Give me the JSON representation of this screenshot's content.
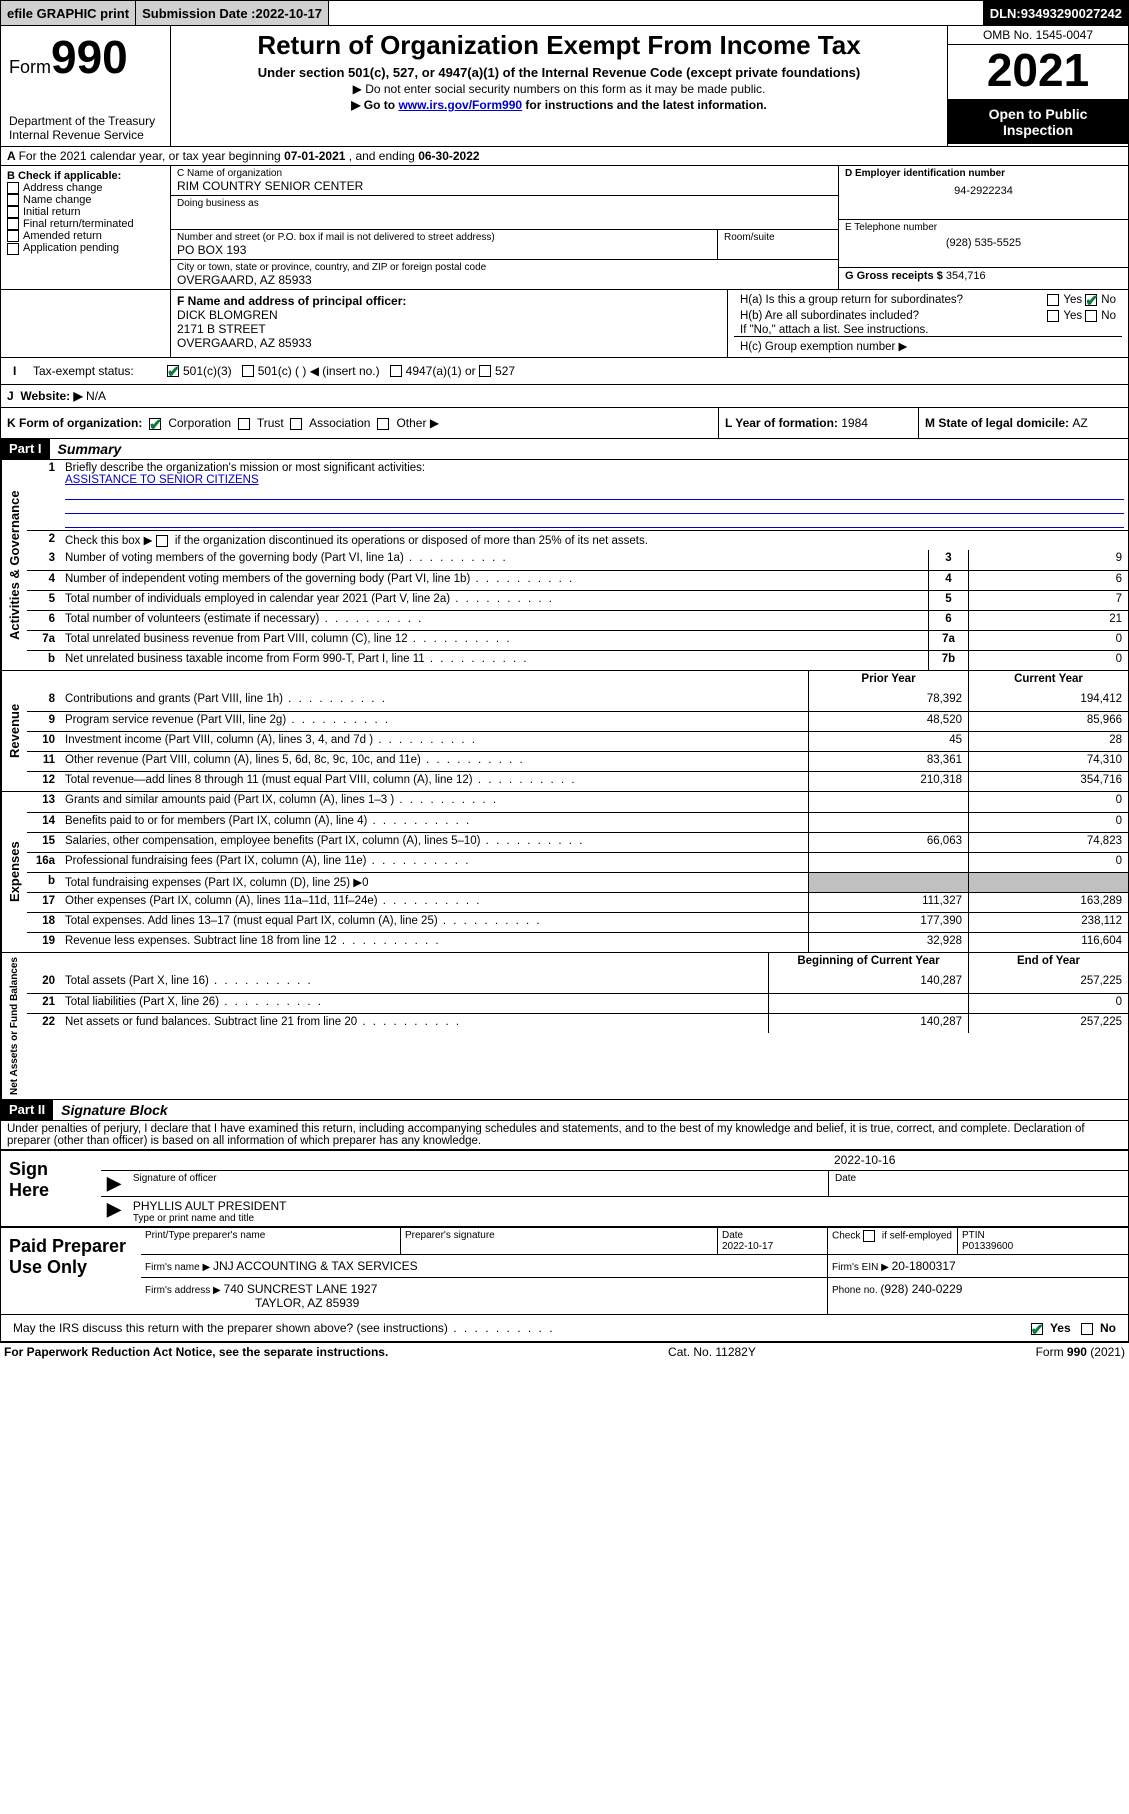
{
  "topbar": {
    "efile": "efile GRAPHIC print",
    "submission_label": "Submission Date : ",
    "submission_date": "2022-10-17",
    "dln_label": "DLN: ",
    "dln": "93493290027242"
  },
  "header": {
    "form_prefix": "Form",
    "form_num": "990",
    "dept": "Department of the Treasury",
    "irs": "Internal Revenue Service",
    "title": "Return of Organization Exempt From Income Tax",
    "subtitle": "Under section 501(c), 527, or 4947(a)(1) of the Internal Revenue Code (except private foundations)",
    "note1": "▶ Do not enter social security numbers on this form as it may be made public.",
    "note2_pre": "▶ Go to ",
    "note2_link": "www.irs.gov/Form990",
    "note2_post": " for instructions and the latest information.",
    "omb": "OMB No. 1545-0047",
    "year": "2021",
    "open": "Open to Public Inspection"
  },
  "period": {
    "text_a": "For the 2021 calendar year, or tax year beginning ",
    "begin": "07-01-2021",
    "text_b": " , and ending ",
    "end": "06-30-2022"
  },
  "boxB": {
    "label": "B Check if applicable:",
    "items": [
      "Address change",
      "Name change",
      "Initial return",
      "Final return/terminated",
      "Amended return",
      "Application pending"
    ]
  },
  "boxC": {
    "name_label": "C Name of organization",
    "name": "RIM COUNTRY SENIOR CENTER",
    "dba_label": "Doing business as",
    "dba": "",
    "addr_label": "Number and street (or P.O. box if mail is not delivered to street address)",
    "room_label": "Room/suite",
    "addr": "PO BOX 193",
    "city_label": "City or town, state or province, country, and ZIP or foreign postal code",
    "city": "OVERGAARD, AZ  85933"
  },
  "boxD": {
    "label": "D Employer identification number",
    "val": "94-2922234"
  },
  "boxE": {
    "label": "E Telephone number",
    "val": "(928) 535-5525"
  },
  "boxG": {
    "label": "G Gross receipts $ ",
    "val": "354,716"
  },
  "boxF": {
    "label": "F Name and address of principal officer:",
    "name": "DICK BLOMGREN",
    "addr1": "2171 B STREET",
    "addr2": "OVERGAARD, AZ  85933"
  },
  "boxH": {
    "a": "H(a)  Is this a group return for subordinates?",
    "b": "H(b)  Are all subordinates included?",
    "b_note": "If \"No,\" attach a list. See instructions.",
    "c": "H(c)  Group exemption number ▶",
    "yes": "Yes",
    "no": "No"
  },
  "boxI": {
    "label": "Tax-exempt status:",
    "s1": "501(c)(3)",
    "s2": "501(c) (  ) ◀ (insert no.)",
    "s3": "4947(a)(1) or",
    "s4": "527"
  },
  "boxJ": {
    "label": "Website: ▶",
    "val": "N/A"
  },
  "boxK": {
    "label": "K Form of organization:",
    "o1": "Corporation",
    "o2": "Trust",
    "o3": "Association",
    "o4": "Other ▶"
  },
  "boxL": {
    "label": "L Year of formation: ",
    "val": "1984"
  },
  "boxM": {
    "label": "M State of legal domicile: ",
    "val": "AZ"
  },
  "part1": {
    "hdr": "Part I",
    "title": "Summary",
    "l1": "Briefly describe the organization's mission or most significant activities:",
    "mission": "ASSISTANCE TO SENIOR CITIZENS",
    "l2": "Check this box ▶",
    "l2b": " if the organization discontinued its operations or disposed of more than 25% of its net assets.",
    "tabs": {
      "gov": "Activities & Governance",
      "rev": "Revenue",
      "exp": "Expenses",
      "net": "Net Assets or Fund Balances"
    },
    "cols": {
      "prior": "Prior Year",
      "current": "Current Year",
      "begin": "Beginning of Current Year",
      "end": "End of Year"
    },
    "rows_gov": [
      {
        "n": "3",
        "t": "Number of voting members of the governing body (Part VI, line 1a)",
        "box": "3",
        "v": "9"
      },
      {
        "n": "4",
        "t": "Number of independent voting members of the governing body (Part VI, line 1b)",
        "box": "4",
        "v": "6"
      },
      {
        "n": "5",
        "t": "Total number of individuals employed in calendar year 2021 (Part V, line 2a)",
        "box": "5",
        "v": "7"
      },
      {
        "n": "6",
        "t": "Total number of volunteers (estimate if necessary)",
        "box": "6",
        "v": "21"
      },
      {
        "n": "7a",
        "t": "Total unrelated business revenue from Part VIII, column (C), line 12",
        "box": "7a",
        "v": "0"
      },
      {
        "n": "b",
        "t": "Net unrelated business taxable income from Form 990-T, Part I, line 11",
        "box": "7b",
        "v": "0"
      }
    ],
    "rows_rev": [
      {
        "n": "8",
        "t": "Contributions and grants (Part VIII, line 1h)",
        "p": "78,392",
        "c": "194,412"
      },
      {
        "n": "9",
        "t": "Program service revenue (Part VIII, line 2g)",
        "p": "48,520",
        "c": "85,966"
      },
      {
        "n": "10",
        "t": "Investment income (Part VIII, column (A), lines 3, 4, and 7d )",
        "p": "45",
        "c": "28"
      },
      {
        "n": "11",
        "t": "Other revenue (Part VIII, column (A), lines 5, 6d, 8c, 9c, 10c, and 11e)",
        "p": "83,361",
        "c": "74,310"
      },
      {
        "n": "12",
        "t": "Total revenue—add lines 8 through 11 (must equal Part VIII, column (A), line 12)",
        "p": "210,318",
        "c": "354,716"
      }
    ],
    "rows_exp": [
      {
        "n": "13",
        "t": "Grants and similar amounts paid (Part IX, column (A), lines 1–3 )",
        "p": "",
        "c": "0"
      },
      {
        "n": "14",
        "t": "Benefits paid to or for members (Part IX, column (A), line 4)",
        "p": "",
        "c": "0"
      },
      {
        "n": "15",
        "t": "Salaries, other compensation, employee benefits (Part IX, column (A), lines 5–10)",
        "p": "66,063",
        "c": "74,823"
      },
      {
        "n": "16a",
        "t": "Professional fundraising fees (Part IX, column (A), line 11e)",
        "p": "",
        "c": "0"
      },
      {
        "n": "b",
        "t": "Total fundraising expenses (Part IX, column (D), line 25) ▶0",
        "shade": true
      },
      {
        "n": "17",
        "t": "Other expenses (Part IX, column (A), lines 11a–11d, 11f–24e)",
        "p": "111,327",
        "c": "163,289"
      },
      {
        "n": "18",
        "t": "Total expenses. Add lines 13–17 (must equal Part IX, column (A), line 25)",
        "p": "177,390",
        "c": "238,112"
      },
      {
        "n": "19",
        "t": "Revenue less expenses. Subtract line 18 from line 12",
        "p": "32,928",
        "c": "116,604"
      }
    ],
    "rows_net": [
      {
        "n": "20",
        "t": "Total assets (Part X, line 16)",
        "p": "140,287",
        "c": "257,225"
      },
      {
        "n": "21",
        "t": "Total liabilities (Part X, line 26)",
        "p": "",
        "c": "0"
      },
      {
        "n": "22",
        "t": "Net assets or fund balances. Subtract line 21 from line 20",
        "p": "140,287",
        "c": "257,225"
      }
    ]
  },
  "part2": {
    "hdr": "Part II",
    "title": "Signature Block",
    "decl": "Under penalties of perjury, I declare that I have examined this return, including accompanying schedules and statements, and to the best of my knowledge and belief, it is true, correct, and complete. Declaration of preparer (other than officer) is based on all information of which preparer has any knowledge.",
    "sign_here": "Sign Here",
    "sig_officer": "Signature of officer",
    "date_label": "Date",
    "sig_date": "2022-10-16",
    "officer_name": "PHYLLIS AULT PRESIDENT",
    "officer_type": "Type or print name and title",
    "paid": "Paid Preparer Use Only",
    "p_name_label": "Print/Type preparer's name",
    "p_sig_label": "Preparer's signature",
    "p_date_label": "Date",
    "p_date": "2022-10-17",
    "p_check": "Check",
    "p_self": "if self-employed",
    "ptin_label": "PTIN",
    "ptin": "P01339600",
    "firm_name_label": "Firm's name    ▶ ",
    "firm_name": "JNJ ACCOUNTING & TAX SERVICES",
    "firm_ein_label": "Firm's EIN ▶ ",
    "firm_ein": "20-1800317",
    "firm_addr_label": "Firm's address ▶ ",
    "firm_addr1": "740 SUNCREST LANE 1927",
    "firm_addr2": "TAYLOR, AZ  85939",
    "phone_label": "Phone no. ",
    "phone": "(928) 240-0229",
    "discuss": "May the IRS discuss this return with the preparer shown above? (see instructions)",
    "yes": "Yes",
    "no": "No"
  },
  "footer": {
    "left": "For Paperwork Reduction Act Notice, see the separate instructions.",
    "mid": "Cat. No. 11282Y",
    "right": "Form 990 (2021)"
  }
}
